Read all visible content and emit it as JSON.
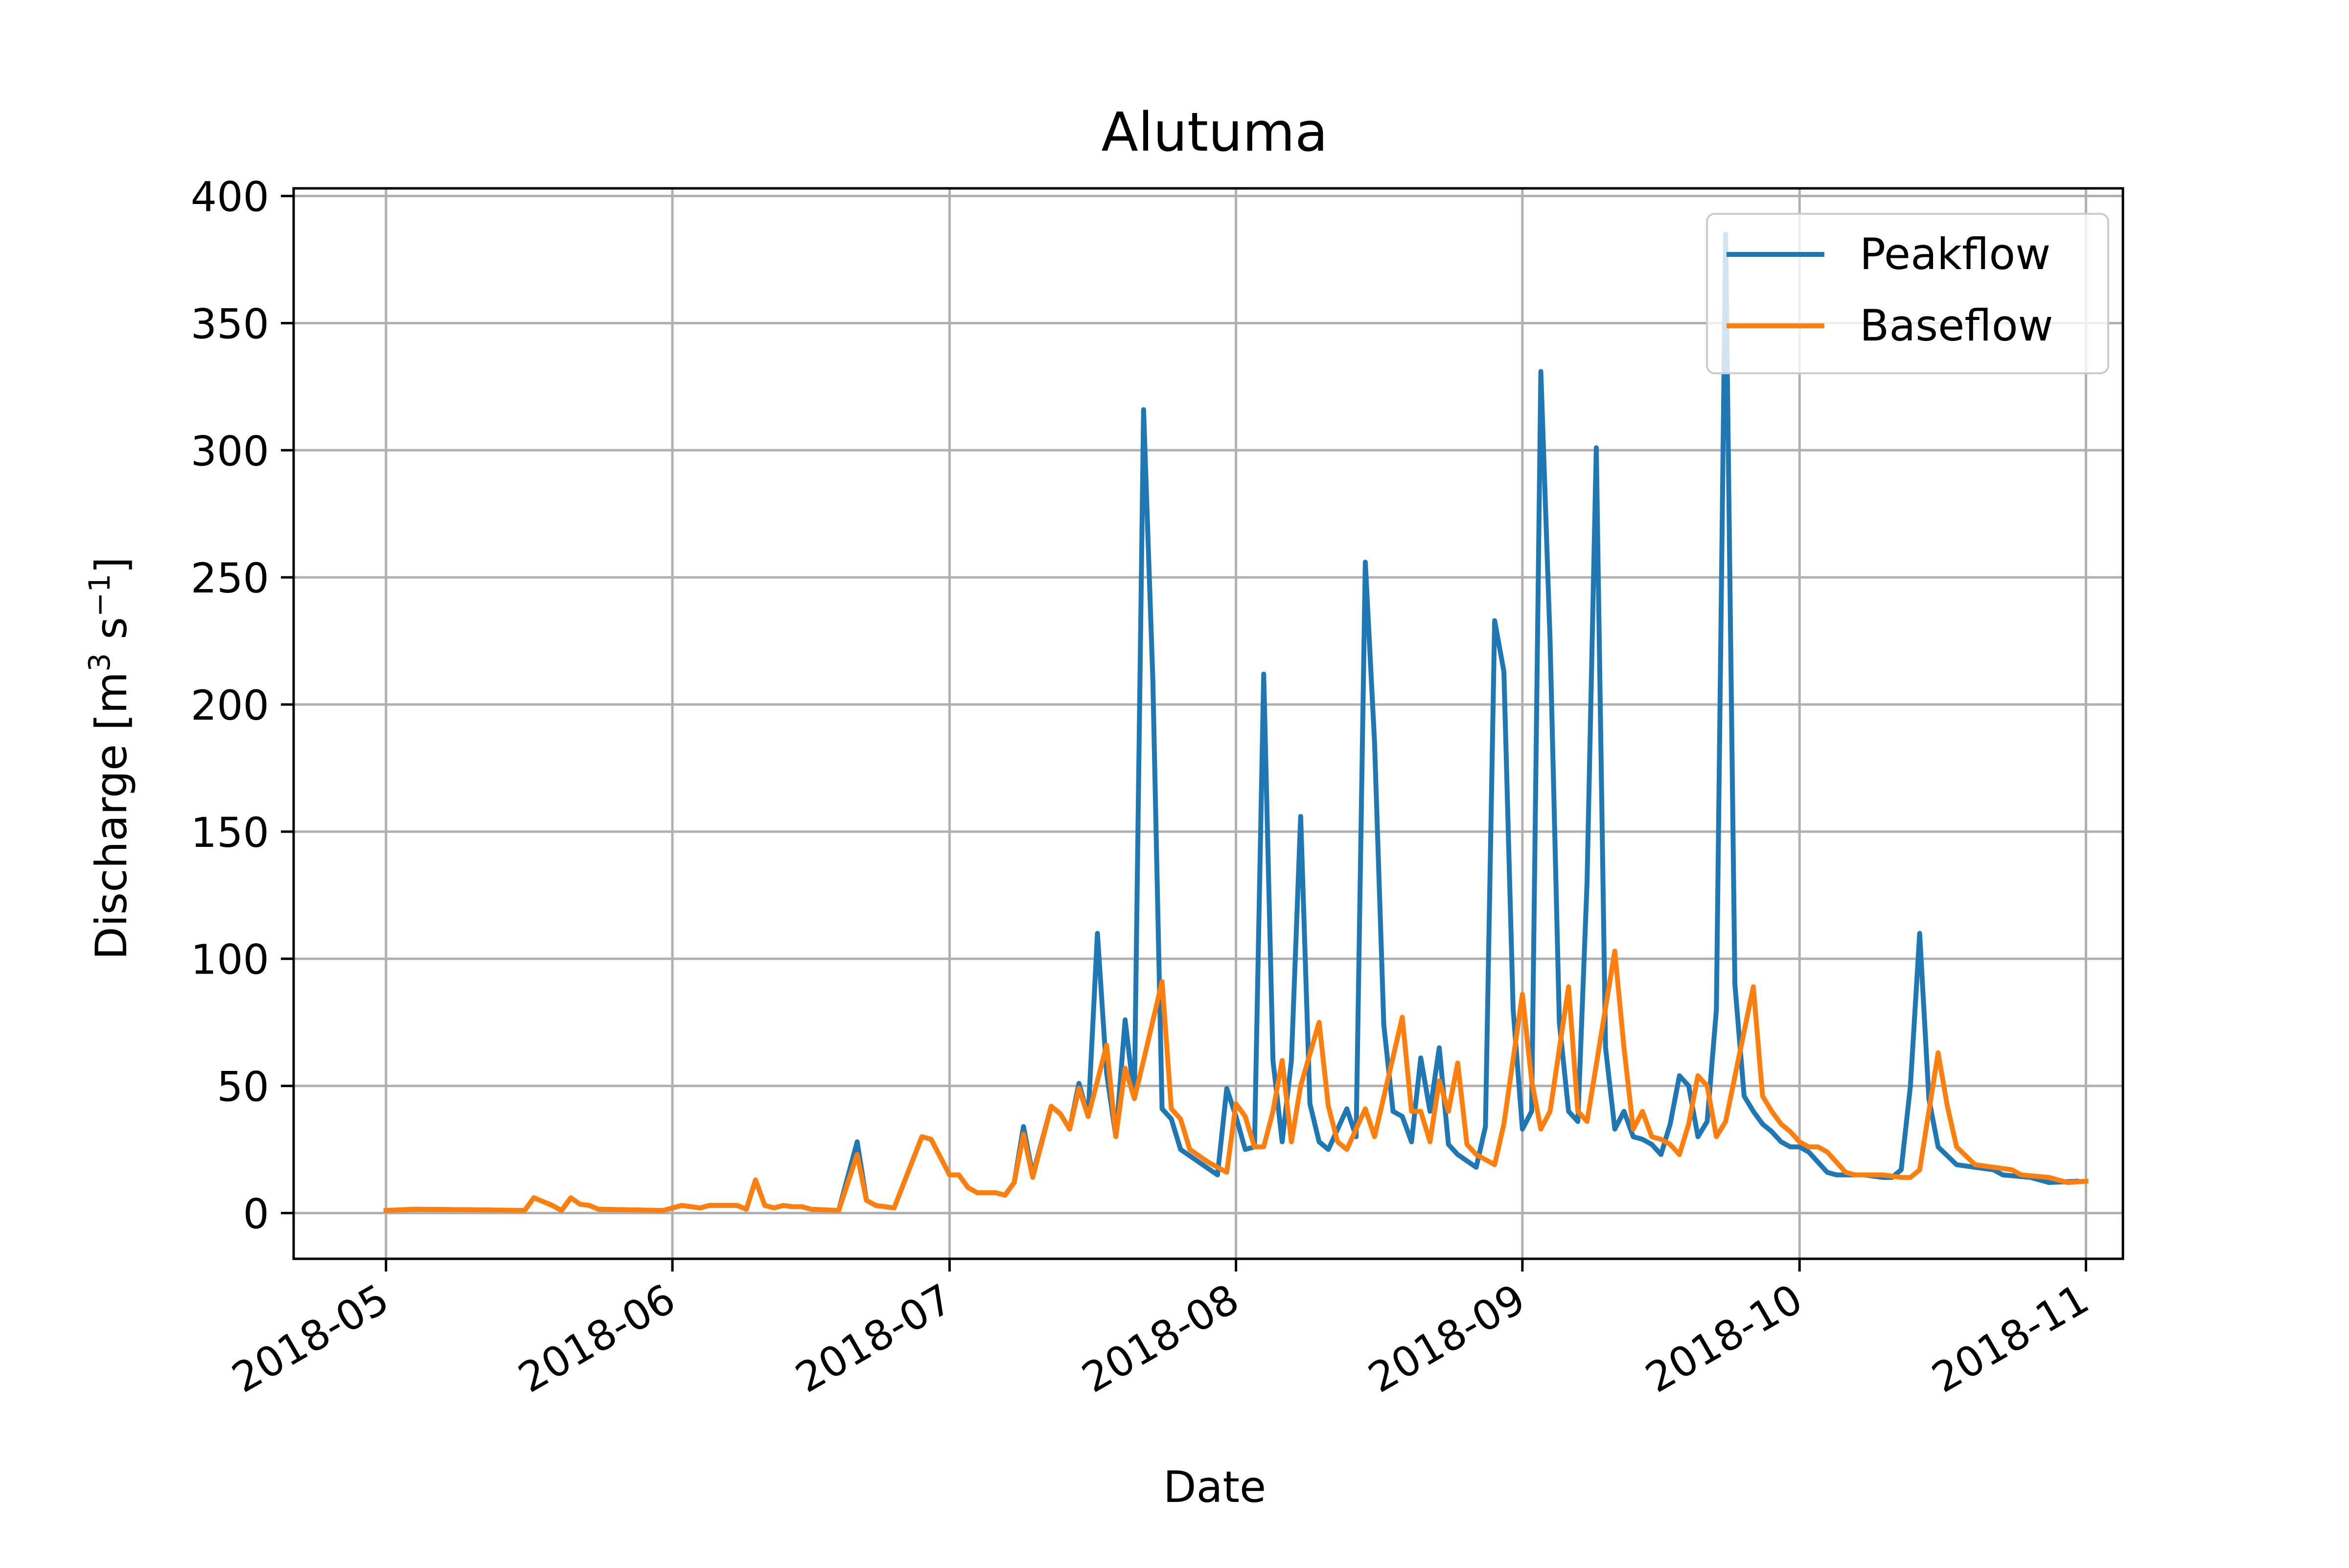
{
  "chart_data": {
    "type": "line",
    "title": "Alutuma",
    "xlabel": "Date",
    "ylabel": "Discharge [m³ s⁻¹]",
    "ylabel_parts": {
      "before": "Discharge [m",
      "sup1": "3",
      "middle": " s",
      "sup2": "−1",
      "after": "]"
    },
    "ylim": [
      -18,
      403
    ],
    "xlim": [
      "2018-04-21",
      "2018-11-05"
    ],
    "yticks": [
      0,
      50,
      100,
      150,
      200,
      250,
      300,
      350,
      400
    ],
    "xticks": [
      "2018-05-01",
      "2018-06-01",
      "2018-07-01",
      "2018-08-01",
      "2018-09-01",
      "2018-10-01",
      "2018-11-01"
    ],
    "xtick_labels": [
      "2018-05",
      "2018-06",
      "2018-07",
      "2018-08",
      "2018-09",
      "2018-10",
      "2018-11"
    ],
    "grid": true,
    "legend_position": "top-right",
    "series": [
      {
        "name": "Peakflow",
        "color": "#1f77b4",
        "points": [
          [
            "2018-05-01",
            1
          ],
          [
            "2018-05-04",
            1.5
          ],
          [
            "2018-05-10",
            1.3
          ],
          [
            "2018-05-16",
            1
          ],
          [
            "2018-05-16",
            1
          ],
          [
            "2018-05-17",
            6
          ],
          [
            "2018-05-19",
            3
          ],
          [
            "2018-05-20",
            1
          ],
          [
            "2018-05-21",
            6
          ],
          [
            "2018-05-22",
            3.5
          ],
          [
            "2018-05-23",
            3
          ],
          [
            "2018-05-24",
            1.5
          ],
          [
            "2018-05-31",
            1
          ],
          [
            "2018-06-02",
            3
          ],
          [
            "2018-06-04",
            2
          ],
          [
            "2018-06-05",
            3
          ],
          [
            "2018-06-08",
            3
          ],
          [
            "2018-06-09",
            1.5
          ],
          [
            "2018-06-10",
            13
          ],
          [
            "2018-06-11",
            3
          ],
          [
            "2018-06-12",
            2
          ],
          [
            "2018-06-13",
            3
          ],
          [
            "2018-06-14",
            2.5
          ],
          [
            "2018-06-15",
            2.5
          ],
          [
            "2018-06-16",
            1.5
          ],
          [
            "2018-06-19",
            1
          ],
          [
            "2018-06-21",
            28
          ],
          [
            "2018-06-22",
            5
          ],
          [
            "2018-06-23",
            3
          ],
          [
            "2018-06-25",
            2
          ],
          [
            "2018-06-28",
            30
          ],
          [
            "2018-06-29",
            29
          ],
          [
            "2018-07-01",
            15
          ],
          [
            "2018-07-02",
            15
          ],
          [
            "2018-07-03",
            10
          ],
          [
            "2018-07-04",
            8
          ],
          [
            "2018-07-06",
            8
          ],
          [
            "2018-07-07",
            7
          ],
          [
            "2018-07-08",
            12
          ],
          [
            "2018-07-09",
            34
          ],
          [
            "2018-07-10",
            15
          ],
          [
            "2018-07-12",
            42
          ],
          [
            "2018-07-13",
            39
          ],
          [
            "2018-07-14",
            33
          ],
          [
            "2018-07-15",
            51
          ],
          [
            "2018-07-16",
            38
          ],
          [
            "2018-07-17",
            110
          ],
          [
            "2018-07-18",
            55
          ],
          [
            "2018-07-19",
            30
          ],
          [
            "2018-07-20",
            76
          ],
          [
            "2018-07-21",
            45
          ],
          [
            "2018-07-22",
            316
          ],
          [
            "2018-07-23",
            210
          ],
          [
            "2018-07-24",
            41
          ],
          [
            "2018-07-25",
            37
          ],
          [
            "2018-07-26",
            25
          ],
          [
            "2018-07-28",
            20
          ],
          [
            "2018-07-30",
            15
          ],
          [
            "2018-07-31",
            49
          ],
          [
            "2018-08-01",
            38
          ],
          [
            "2018-08-02",
            25
          ],
          [
            "2018-08-03",
            26
          ],
          [
            "2018-08-04",
            212
          ],
          [
            "2018-08-05",
            60
          ],
          [
            "2018-08-06",
            28
          ],
          [
            "2018-08-07",
            60
          ],
          [
            "2018-08-08",
            156
          ],
          [
            "2018-08-09",
            43
          ],
          [
            "2018-08-10",
            28
          ],
          [
            "2018-08-11",
            25
          ],
          [
            "2018-08-13",
            41
          ],
          [
            "2018-08-14",
            30
          ],
          [
            "2018-08-15",
            256
          ],
          [
            "2018-08-16",
            185
          ],
          [
            "2018-08-17",
            74
          ],
          [
            "2018-08-18",
            40
          ],
          [
            "2018-08-19",
            38
          ],
          [
            "2018-08-20",
            28
          ],
          [
            "2018-08-21",
            61
          ],
          [
            "2018-08-22",
            40
          ],
          [
            "2018-08-23",
            65
          ],
          [
            "2018-08-24",
            27
          ],
          [
            "2018-08-25",
            23
          ],
          [
            "2018-08-27",
            18
          ],
          [
            "2018-08-28",
            34
          ],
          [
            "2018-08-29",
            233
          ],
          [
            "2018-08-30",
            213
          ],
          [
            "2018-08-31",
            80
          ],
          [
            "2018-09-01",
            33
          ],
          [
            "2018-09-02",
            40
          ],
          [
            "2018-09-03",
            331
          ],
          [
            "2018-09-04",
            225
          ],
          [
            "2018-09-05",
            75
          ],
          [
            "2018-09-06",
            40
          ],
          [
            "2018-09-07",
            36
          ],
          [
            "2018-09-08",
            130
          ],
          [
            "2018-09-09",
            301
          ],
          [
            "2018-09-10",
            65
          ],
          [
            "2018-09-11",
            33
          ],
          [
            "2018-09-12",
            40
          ],
          [
            "2018-09-13",
            30
          ],
          [
            "2018-09-14",
            29
          ],
          [
            "2018-09-15",
            27
          ],
          [
            "2018-09-16",
            23
          ],
          [
            "2018-09-17",
            35
          ],
          [
            "2018-09-18",
            54
          ],
          [
            "2018-09-19",
            50
          ],
          [
            "2018-09-20",
            30
          ],
          [
            "2018-09-21",
            36
          ],
          [
            "2018-09-22",
            80
          ],
          [
            "2018-09-23",
            385
          ],
          [
            "2018-09-24",
            90
          ],
          [
            "2018-09-25",
            46
          ],
          [
            "2018-09-26",
            40
          ],
          [
            "2018-09-27",
            35
          ],
          [
            "2018-09-28",
            32
          ],
          [
            "2018-09-29",
            28
          ],
          [
            "2018-09-30",
            26
          ],
          [
            "2018-10-01",
            26
          ],
          [
            "2018-10-02",
            24
          ],
          [
            "2018-10-03",
            20
          ],
          [
            "2018-10-04",
            16
          ],
          [
            "2018-10-05",
            15
          ],
          [
            "2018-10-08",
            15
          ],
          [
            "2018-10-10",
            14
          ],
          [
            "2018-10-11",
            14
          ],
          [
            "2018-10-12",
            17
          ],
          [
            "2018-10-13",
            50
          ],
          [
            "2018-10-14",
            110
          ],
          [
            "2018-10-15",
            45
          ],
          [
            "2018-10-16",
            26
          ],
          [
            "2018-10-18",
            19
          ],
          [
            "2018-10-22",
            17
          ],
          [
            "2018-10-23",
            15
          ],
          [
            "2018-10-26",
            14
          ],
          [
            "2018-10-28",
            12
          ],
          [
            "2018-10-31",
            12.5
          ]
        ]
      },
      {
        "name": "Baseflow",
        "color": "#ff7f0e",
        "points": [
          [
            "2018-05-01",
            1
          ],
          [
            "2018-05-04",
            1.5
          ],
          [
            "2018-05-10",
            1.3
          ],
          [
            "2018-05-16",
            1
          ],
          [
            "2018-05-17",
            6
          ],
          [
            "2018-05-19",
            3
          ],
          [
            "2018-05-20",
            1
          ],
          [
            "2018-05-21",
            6
          ],
          [
            "2018-05-22",
            3.5
          ],
          [
            "2018-05-23",
            3
          ],
          [
            "2018-05-24",
            1.5
          ],
          [
            "2018-05-31",
            1
          ],
          [
            "2018-06-02",
            3
          ],
          [
            "2018-06-04",
            2
          ],
          [
            "2018-06-05",
            3
          ],
          [
            "2018-06-08",
            3
          ],
          [
            "2018-06-09",
            1.5
          ],
          [
            "2018-06-10",
            13
          ],
          [
            "2018-06-11",
            3
          ],
          [
            "2018-06-12",
            2
          ],
          [
            "2018-06-13",
            3
          ],
          [
            "2018-06-14",
            2.5
          ],
          [
            "2018-06-15",
            2.5
          ],
          [
            "2018-06-16",
            1.5
          ],
          [
            "2018-06-19",
            1
          ],
          [
            "2018-06-21",
            23
          ],
          [
            "2018-06-22",
            5
          ],
          [
            "2018-06-23",
            3
          ],
          [
            "2018-06-25",
            2
          ],
          [
            "2018-06-28",
            30
          ],
          [
            "2018-06-29",
            29
          ],
          [
            "2018-07-01",
            15
          ],
          [
            "2018-07-02",
            15
          ],
          [
            "2018-07-03",
            10
          ],
          [
            "2018-07-04",
            8
          ],
          [
            "2018-07-06",
            8
          ],
          [
            "2018-07-07",
            7
          ],
          [
            "2018-07-08",
            12
          ],
          [
            "2018-07-09",
            31
          ],
          [
            "2018-07-10",
            14
          ],
          [
            "2018-07-12",
            42
          ],
          [
            "2018-07-13",
            39
          ],
          [
            "2018-07-14",
            33
          ],
          [
            "2018-07-15",
            49
          ],
          [
            "2018-07-16",
            38
          ],
          [
            "2018-07-17",
            52
          ],
          [
            "2018-07-18",
            66
          ],
          [
            "2018-07-19",
            30
          ],
          [
            "2018-07-20",
            57
          ],
          [
            "2018-07-21",
            45
          ],
          [
            "2018-07-22",
            60
          ],
          [
            "2018-07-24",
            91
          ],
          [
            "2018-07-25",
            41
          ],
          [
            "2018-07-26",
            37
          ],
          [
            "2018-07-27",
            25
          ],
          [
            "2018-07-29",
            20
          ],
          [
            "2018-07-31",
            16
          ],
          [
            "2018-08-01",
            43
          ],
          [
            "2018-08-02",
            38
          ],
          [
            "2018-08-03",
            26
          ],
          [
            "2018-08-04",
            26
          ],
          [
            "2018-08-05",
            40
          ],
          [
            "2018-08-06",
            60
          ],
          [
            "2018-08-07",
            28
          ],
          [
            "2018-08-08",
            50
          ],
          [
            "2018-08-10",
            75
          ],
          [
            "2018-08-11",
            42
          ],
          [
            "2018-08-12",
            28
          ],
          [
            "2018-08-13",
            25
          ],
          [
            "2018-08-15",
            41
          ],
          [
            "2018-08-16",
            30
          ],
          [
            "2018-08-19",
            77
          ],
          [
            "2018-08-20",
            40
          ],
          [
            "2018-08-21",
            40
          ],
          [
            "2018-08-22",
            28
          ],
          [
            "2018-08-23",
            52
          ],
          [
            "2018-08-24",
            40
          ],
          [
            "2018-08-25",
            59
          ],
          [
            "2018-08-26",
            27
          ],
          [
            "2018-08-27",
            23
          ],
          [
            "2018-08-29",
            19
          ],
          [
            "2018-08-30",
            35
          ],
          [
            "2018-09-01",
            86
          ],
          [
            "2018-09-02",
            52
          ],
          [
            "2018-09-03",
            33
          ],
          [
            "2018-09-04",
            40
          ],
          [
            "2018-09-06",
            89
          ],
          [
            "2018-09-07",
            40
          ],
          [
            "2018-09-08",
            36
          ],
          [
            "2018-09-11",
            103
          ],
          [
            "2018-09-12",
            65
          ],
          [
            "2018-09-13",
            33
          ],
          [
            "2018-09-14",
            40
          ],
          [
            "2018-09-15",
            30
          ],
          [
            "2018-09-16",
            29
          ],
          [
            "2018-09-17",
            27
          ],
          [
            "2018-09-18",
            23
          ],
          [
            "2018-09-19",
            35
          ],
          [
            "2018-09-20",
            54
          ],
          [
            "2018-09-21",
            50
          ],
          [
            "2018-09-22",
            30
          ],
          [
            "2018-09-23",
            36
          ],
          [
            "2018-09-26",
            89
          ],
          [
            "2018-09-27",
            46
          ],
          [
            "2018-09-28",
            40
          ],
          [
            "2018-09-29",
            35
          ],
          [
            "2018-09-30",
            32
          ],
          [
            "2018-10-01",
            28
          ],
          [
            "2018-10-02",
            26
          ],
          [
            "2018-10-03",
            26
          ],
          [
            "2018-10-04",
            24
          ],
          [
            "2018-10-05",
            20
          ],
          [
            "2018-10-06",
            16
          ],
          [
            "2018-10-07",
            15
          ],
          [
            "2018-10-10",
            15
          ],
          [
            "2018-10-12",
            14
          ],
          [
            "2018-10-13",
            14
          ],
          [
            "2018-10-14",
            17
          ],
          [
            "2018-10-15",
            40
          ],
          [
            "2018-10-16",
            63
          ],
          [
            "2018-10-17",
            42
          ],
          [
            "2018-10-18",
            26
          ],
          [
            "2018-10-20",
            19
          ],
          [
            "2018-10-24",
            17
          ],
          [
            "2018-10-25",
            15
          ],
          [
            "2018-10-28",
            14
          ],
          [
            "2018-10-30",
            12
          ],
          [
            "2018-11-01",
            12.5
          ]
        ]
      }
    ]
  }
}
